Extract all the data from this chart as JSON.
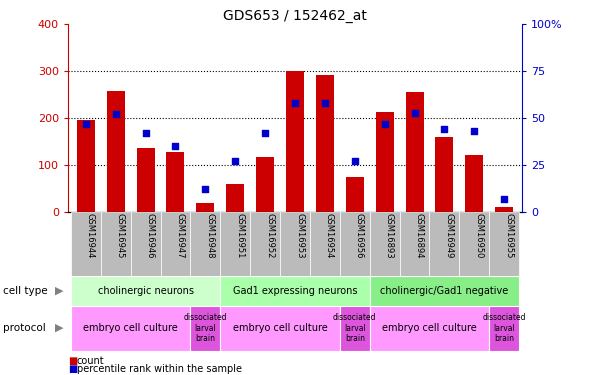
{
  "title": "GDS653 / 152462_at",
  "samples": [
    "GSM16944",
    "GSM16945",
    "GSM16946",
    "GSM16947",
    "GSM16948",
    "GSM16951",
    "GSM16952",
    "GSM16953",
    "GSM16954",
    "GSM16956",
    "GSM16893",
    "GSM16894",
    "GSM16949",
    "GSM16950",
    "GSM16955"
  ],
  "counts": [
    197,
    258,
    137,
    127,
    20,
    60,
    117,
    301,
    291,
    74,
    213,
    256,
    160,
    121,
    10
  ],
  "percentiles": [
    47,
    52,
    42,
    35,
    12,
    27,
    42,
    58,
    58,
    27,
    47,
    53,
    44,
    43,
    7
  ],
  "ylim_left": [
    0,
    400
  ],
  "ylim_right": [
    0,
    100
  ],
  "yticks_left": [
    0,
    100,
    200,
    300,
    400
  ],
  "yticks_right": [
    0,
    25,
    50,
    75,
    100
  ],
  "bar_color": "#cc0000",
  "dot_color": "#0000cc",
  "cell_type_groups": [
    {
      "label": "cholinergic neurons",
      "start": 0,
      "end": 4
    },
    {
      "label": "Gad1 expressing neurons",
      "start": 5,
      "end": 9
    },
    {
      "label": "cholinergic/Gad1 negative",
      "start": 10,
      "end": 14
    }
  ],
  "cell_type_colors": [
    "#ccffcc",
    "#aaffaa",
    "#88ee88"
  ],
  "protocol_groups": [
    {
      "label": "embryo cell culture",
      "start": 0,
      "end": 3
    },
    {
      "label": "dissociated\nlarval\nbrain",
      "start": 4,
      "end": 4
    },
    {
      "label": "embryo cell culture",
      "start": 5,
      "end": 8
    },
    {
      "label": "dissociated\nlarval\nbrain",
      "start": 9,
      "end": 9
    },
    {
      "label": "embryo cell culture",
      "start": 10,
      "end": 13
    },
    {
      "label": "dissociated\nlarval\nbrain",
      "start": 14,
      "end": 14
    }
  ],
  "protocol_color_embryo": "#ff99ff",
  "protocol_color_dissociated": "#dd55dd",
  "left_color": "#cc0000",
  "right_color": "#0000cc",
  "tick_bg_color": "#bbbbbb",
  "grid_dotted_color": "#000000"
}
